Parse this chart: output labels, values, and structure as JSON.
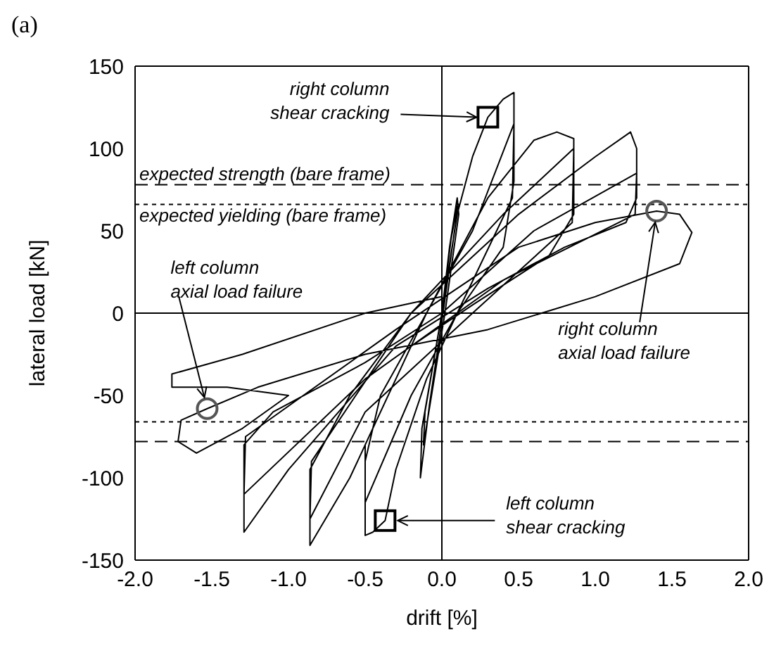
{
  "chart_data": {
    "type": "line",
    "title": "(a)",
    "xlabel": "drift [%]",
    "ylabel": "lateral load [kN]",
    "xlim": [
      -2,
      2
    ],
    "ylim": [
      -150,
      150
    ],
    "xticks": [
      {
        "value": -2,
        "label": "-2.0"
      },
      {
        "value": -1.5,
        "label": "-1.5"
      },
      {
        "value": -1,
        "label": "-1.0"
      },
      {
        "value": -0.5,
        "label": "-0.5"
      },
      {
        "value": 0,
        "label": "0.0"
      },
      {
        "value": 0.5,
        "label": "0.5"
      },
      {
        "value": 1,
        "label": "1.0"
      },
      {
        "value": 1.5,
        "label": "1.5"
      },
      {
        "value": 2,
        "label": "2.0"
      }
    ],
    "yticks": [
      -150,
      -100,
      -50,
      0,
      50,
      100,
      150
    ],
    "series": [
      {
        "color": "#000000",
        "marker": "none",
        "line_style": "solid",
        "x": [
          0,
          0.05,
          0.1,
          0.11,
          0.02,
          -0.05,
          -0.12,
          -0.11,
          0,
          0.06,
          0.1,
          0.09,
          0,
          -0.08,
          -0.14,
          -0.13,
          0,
          0.1,
          0.2,
          0.3,
          0.4,
          0.47,
          0.47,
          0.4,
          0.1,
          -0.1,
          -0.3,
          -0.37,
          -0.45,
          -0.5,
          -0.5,
          -0.4,
          -0.1,
          0.2,
          0.47,
          0.46,
          0.1,
          -0.2,
          -0.5,
          -0.5,
          -0.1,
          0.3,
          0.6,
          0.75,
          0.86,
          0.86,
          0.7,
          0.2,
          -0.2,
          -0.6,
          -0.86,
          -0.86,
          -0.6,
          -0.2,
          0.4,
          0.86,
          0.85,
          0.2,
          -0.5,
          -0.86,
          -0.85,
          -0.2,
          0.5,
          1,
          1.23,
          1.27,
          1.27,
          1.2,
          0.8,
          0.3,
          -0.3,
          -1,
          -1.29,
          -1.29,
          -1.1,
          -0.5,
          0,
          0.6,
          1.27,
          1.26,
          0.4,
          -0.5,
          -1.29,
          -1.28,
          -0.3,
          0.5,
          1,
          1.4,
          1.55,
          1.63,
          1.55,
          1,
          0.3,
          -0.5,
          -1.2,
          -1.53,
          -1.7,
          -1.72,
          -1.6,
          -1.3,
          -1,
          -1.4,
          -1.76,
          -1.76,
          -1.3,
          -0.5,
          0
        ],
        "values": [
          0,
          40,
          70,
          60,
          0,
          -40,
          -80,
          -60,
          0,
          45,
          65,
          55,
          -5,
          -55,
          -100,
          -70,
          0,
          60,
          95,
          119,
          130,
          134,
          80,
          40,
          0,
          -40,
          -95,
          -126,
          -133,
          -135,
          -90,
          -50,
          0,
          50,
          115,
          70,
          0,
          -50,
          -115,
          -80,
          0,
          70,
          105,
          110,
          106,
          60,
          35,
          5,
          -20,
          -100,
          -141,
          -95,
          -50,
          0,
          60,
          100,
          55,
          0,
          -60,
          -125,
          -90,
          0,
          60,
          95,
          110,
          100,
          70,
          55,
          40,
          15,
          -20,
          -95,
          -133,
          -80,
          -60,
          -30,
          0,
          50,
          85,
          60,
          20,
          -40,
          -110,
          -75,
          -10,
          40,
          55,
          62,
          60,
          49,
          30,
          10,
          -10,
          -25,
          -45,
          -58,
          -65,
          -78,
          -85,
          -70,
          -50,
          -45,
          -45,
          -37,
          -25,
          0,
          10
        ]
      },
      {
        "type": "scatter",
        "color": "#000000",
        "marker": "square",
        "x": [
          0.3,
          -0.37
        ],
        "values": [
          119,
          -126
        ]
      },
      {
        "type": "scatter",
        "color": "#555555",
        "marker": "circle",
        "x": [
          1.4,
          -1.53
        ],
        "values": [
          62,
          -58
        ]
      }
    ],
    "ref_lines": [
      {
        "axis": "x",
        "value": 0,
        "label": null,
        "color": "#000000",
        "line_style": "solid"
      },
      {
        "axis": "y",
        "value": 0,
        "label": null,
        "color": "#000000",
        "line_style": "solid"
      },
      {
        "axis": "y",
        "value": 78,
        "label": "expected strength (bare frame)",
        "color": "#000000",
        "line_style": "dashed"
      },
      {
        "axis": "y",
        "value": 66,
        "label": "expected yielding (bare frame)",
        "color": "#000000",
        "line_style": "dotted"
      },
      {
        "axis": "y",
        "value": -66,
        "label": null,
        "color": "#000000",
        "line_style": "dotted"
      },
      {
        "axis": "y",
        "value": -78,
        "label": null,
        "color": "#000000",
        "line_style": "dashed"
      }
    ],
    "annotations": [
      {
        "text": "right column shear cracking",
        "x": 0.3,
        "y": 119
      },
      {
        "text": "right column axial load failure",
        "x": 1.4,
        "y": 62
      },
      {
        "text": "left column axial load failure",
        "x": -1.53,
        "y": -58
      },
      {
        "text": "left column shear cracking",
        "x": -0.37,
        "y": -126
      }
    ]
  }
}
